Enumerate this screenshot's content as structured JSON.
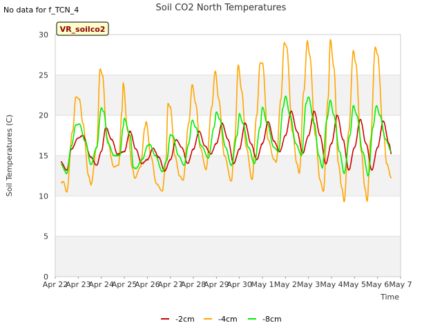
{
  "chart_data": {
    "type": "line",
    "title": "Soil CO2 North Temperatures",
    "corner_note": "No data for f_TCN_4",
    "badge": "VR_soilco2",
    "xlabel": "Time",
    "ylabel": "Soil Temperatures (C)",
    "x_ticks": [
      "Apr 22",
      "Apr 23",
      "Apr 24",
      "Apr 25",
      "Apr 26",
      "Apr 27",
      "Apr 28",
      "Apr 29",
      "Apr 30",
      "May 1",
      "May 2",
      "May 3",
      "May 4",
      "May 5",
      "May 6",
      "May 7"
    ],
    "xlim": [
      0,
      15
    ],
    "ylim": [
      0,
      30
    ],
    "y_ticks": [
      0,
      5,
      10,
      15,
      20,
      25,
      30
    ],
    "grid": true,
    "legend_position": "bottom-center",
    "x_units": "days since Apr 22",
    "series": [
      {
        "name": "-2cm",
        "color": "#cc0000",
        "peak_hour": 0.68,
        "points": [
          [
            0.25,
            14.2
          ],
          [
            0.5,
            13.2
          ],
          [
            0.7,
            15.8
          ],
          [
            1,
            17.2
          ],
          [
            1.2,
            17.5
          ],
          [
            1.55,
            14.8
          ],
          [
            1.8,
            13.8
          ],
          [
            2,
            15.5
          ],
          [
            2.2,
            18.5
          ],
          [
            2.45,
            17.0
          ],
          [
            2.7,
            15.2
          ],
          [
            3,
            15.5
          ],
          [
            3.25,
            18.0
          ],
          [
            3.5,
            15.8
          ],
          [
            3.75,
            14.0
          ],
          [
            4,
            14.5
          ],
          [
            4.25,
            15.9
          ],
          [
            4.5,
            14.8
          ],
          [
            4.75,
            13.1
          ],
          [
            5,
            14.5
          ],
          [
            5.25,
            17.0
          ],
          [
            5.5,
            16.0
          ],
          [
            5.75,
            14.0
          ],
          [
            6,
            15.8
          ],
          [
            6.25,
            18.0
          ],
          [
            6.5,
            16.2
          ],
          [
            6.75,
            15.2
          ],
          [
            7,
            16.5
          ],
          [
            7.25,
            19.0
          ],
          [
            7.5,
            17.0
          ],
          [
            7.75,
            14.0
          ],
          [
            8,
            15.8
          ],
          [
            8.25,
            19.0
          ],
          [
            8.5,
            16.5
          ],
          [
            8.75,
            14.5
          ],
          [
            9,
            16.5
          ],
          [
            9.25,
            19.2
          ],
          [
            9.5,
            16.8
          ],
          [
            9.75,
            15.5
          ],
          [
            10,
            17.5
          ],
          [
            10.25,
            20.5
          ],
          [
            10.5,
            18.0
          ],
          [
            10.75,
            15.3
          ],
          [
            11,
            17.5
          ],
          [
            11.25,
            20.5
          ],
          [
            11.5,
            17.5
          ],
          [
            11.75,
            14.0
          ],
          [
            12,
            16.5
          ],
          [
            12.25,
            20.0
          ],
          [
            12.5,
            17.0
          ],
          [
            12.75,
            13.2
          ],
          [
            13,
            16.0
          ],
          [
            13.25,
            19.5
          ],
          [
            13.5,
            16.5
          ],
          [
            13.75,
            13.2
          ],
          [
            14,
            16.0
          ],
          [
            14.25,
            19.3
          ],
          [
            14.5,
            16.5
          ],
          [
            14.6,
            15.2
          ]
        ]
      },
      {
        "name": "-4cm",
        "color": "#ffa500",
        "peak_hour": 0.58,
        "points": [
          [
            0.25,
            11.6
          ],
          [
            0.35,
            11.8
          ],
          [
            0.5,
            10.5
          ],
          [
            0.75,
            18.0
          ],
          [
            0.9,
            22.3
          ],
          [
            1.05,
            22.0
          ],
          [
            1.2,
            19.0
          ],
          [
            1.45,
            12.5
          ],
          [
            1.55,
            11.4
          ],
          [
            1.8,
            16.0
          ],
          [
            1.95,
            25.8
          ],
          [
            2.05,
            25.0
          ],
          [
            2.25,
            17.0
          ],
          [
            2.55,
            13.6
          ],
          [
            2.75,
            13.8
          ],
          [
            2.9,
            20.5
          ],
          [
            2.95,
            24.0
          ],
          [
            3.15,
            18.0
          ],
          [
            3.35,
            13.5
          ],
          [
            3.45,
            12.2
          ],
          [
            3.7,
            13.6
          ],
          [
            3.9,
            18.5
          ],
          [
            3.95,
            19.2
          ],
          [
            4.15,
            15.0
          ],
          [
            4.4,
            11.5
          ],
          [
            4.65,
            10.6
          ],
          [
            4.8,
            14.0
          ],
          [
            4.9,
            21.5
          ],
          [
            5.0,
            21.0
          ],
          [
            5.2,
            15.0
          ],
          [
            5.4,
            12.5
          ],
          [
            5.55,
            11.9
          ],
          [
            5.8,
            19.0
          ],
          [
            5.95,
            23.8
          ],
          [
            6.1,
            21.5
          ],
          [
            6.3,
            16.0
          ],
          [
            6.55,
            13.3
          ],
          [
            6.8,
            21.0
          ],
          [
            6.95,
            25.5
          ],
          [
            7.1,
            22.0
          ],
          [
            7.35,
            15.0
          ],
          [
            7.65,
            11.8
          ],
          [
            7.8,
            17.0
          ],
          [
            7.95,
            26.2
          ],
          [
            8.1,
            23.0
          ],
          [
            8.3,
            16.0
          ],
          [
            8.55,
            12.0
          ],
          [
            8.75,
            20.0
          ],
          [
            8.9,
            26.5
          ],
          [
            9.0,
            26.5
          ],
          [
            9.25,
            17.0
          ],
          [
            9.5,
            14.5
          ],
          [
            9.6,
            14.2
          ],
          [
            9.8,
            22.0
          ],
          [
            9.95,
            29.0
          ],
          [
            10.05,
            28.5
          ],
          [
            10.3,
            18.0
          ],
          [
            10.5,
            14.0
          ],
          [
            10.6,
            12.8
          ],
          [
            10.8,
            23.0
          ],
          [
            10.95,
            29.2
          ],
          [
            11.05,
            27.5
          ],
          [
            11.3,
            17.5
          ],
          [
            11.5,
            12.0
          ],
          [
            11.65,
            10.5
          ],
          [
            11.85,
            22.0
          ],
          [
            11.95,
            29.4
          ],
          [
            12.1,
            26.0
          ],
          [
            12.3,
            14.0
          ],
          [
            12.45,
            11.0
          ],
          [
            12.55,
            9.3
          ],
          [
            12.75,
            18.0
          ],
          [
            12.95,
            28.0
          ],
          [
            13.05,
            26.5
          ],
          [
            13.3,
            15.5
          ],
          [
            13.45,
            11.0
          ],
          [
            13.55,
            9.3
          ],
          [
            13.7,
            17.0
          ],
          [
            13.9,
            28.5
          ],
          [
            14.0,
            27.5
          ],
          [
            14.25,
            18.0
          ],
          [
            14.4,
            14.0
          ],
          [
            14.6,
            12.2
          ]
        ]
      },
      {
        "name": "-8cm",
        "color": "#00ee00",
        "peak_hour": 0.72,
        "points": [
          [
            0.25,
            13.9
          ],
          [
            0.5,
            12.8
          ],
          [
            0.7,
            16.2
          ],
          [
            0.9,
            18.8
          ],
          [
            1.05,
            18.9
          ],
          [
            1.3,
            16.8
          ],
          [
            1.55,
            13.9
          ],
          [
            1.8,
            16.0
          ],
          [
            2.0,
            20.9
          ],
          [
            2.1,
            20.5
          ],
          [
            2.3,
            16.5
          ],
          [
            2.55,
            15.0
          ],
          [
            2.8,
            15.0
          ],
          [
            2.95,
            18.5
          ],
          [
            3.0,
            19.6
          ],
          [
            3.25,
            17.5
          ],
          [
            3.4,
            13.5
          ],
          [
            3.5,
            13.4
          ],
          [
            3.8,
            14.6
          ],
          [
            4.0,
            16.2
          ],
          [
            4.1,
            16.4
          ],
          [
            4.35,
            15.0
          ],
          [
            4.65,
            13.0
          ],
          [
            4.85,
            14.5
          ],
          [
            5.0,
            17.6
          ],
          [
            5.1,
            17.5
          ],
          [
            5.35,
            15.0
          ],
          [
            5.6,
            13.8
          ],
          [
            5.8,
            16.5
          ],
          [
            5.95,
            19.4
          ],
          [
            6.1,
            18.5
          ],
          [
            6.35,
            16.2
          ],
          [
            6.65,
            14.7
          ],
          [
            6.9,
            18.5
          ],
          [
            7.0,
            20.4
          ],
          [
            7.15,
            19.5
          ],
          [
            7.4,
            16.0
          ],
          [
            7.65,
            13.8
          ],
          [
            7.9,
            17.5
          ],
          [
            8.0,
            20.2
          ],
          [
            8.15,
            19.0
          ],
          [
            8.4,
            16.0
          ],
          [
            8.65,
            14.0
          ],
          [
            8.9,
            18.5
          ],
          [
            9.0,
            21.0
          ],
          [
            9.2,
            19.0
          ],
          [
            9.5,
            16.0
          ],
          [
            9.7,
            15.5
          ],
          [
            9.9,
            21.0
          ],
          [
            10.0,
            22.4
          ],
          [
            10.2,
            20.0
          ],
          [
            10.45,
            16.5
          ],
          [
            10.7,
            15.0
          ],
          [
            10.9,
            21.5
          ],
          [
            11.0,
            22.3
          ],
          [
            11.25,
            19.0
          ],
          [
            11.45,
            15.0
          ],
          [
            11.6,
            13.5
          ],
          [
            11.8,
            19.5
          ],
          [
            11.95,
            21.9
          ],
          [
            12.1,
            20.0
          ],
          [
            12.35,
            15.5
          ],
          [
            12.55,
            12.8
          ],
          [
            12.8,
            17.5
          ],
          [
            12.95,
            21.2
          ],
          [
            13.1,
            20.0
          ],
          [
            13.35,
            15.5
          ],
          [
            13.6,
            12.5
          ],
          [
            13.8,
            18.5
          ],
          [
            13.95,
            21.2
          ],
          [
            14.1,
            20.0
          ],
          [
            14.35,
            17.0
          ],
          [
            14.6,
            15.5
          ]
        ]
      }
    ]
  }
}
